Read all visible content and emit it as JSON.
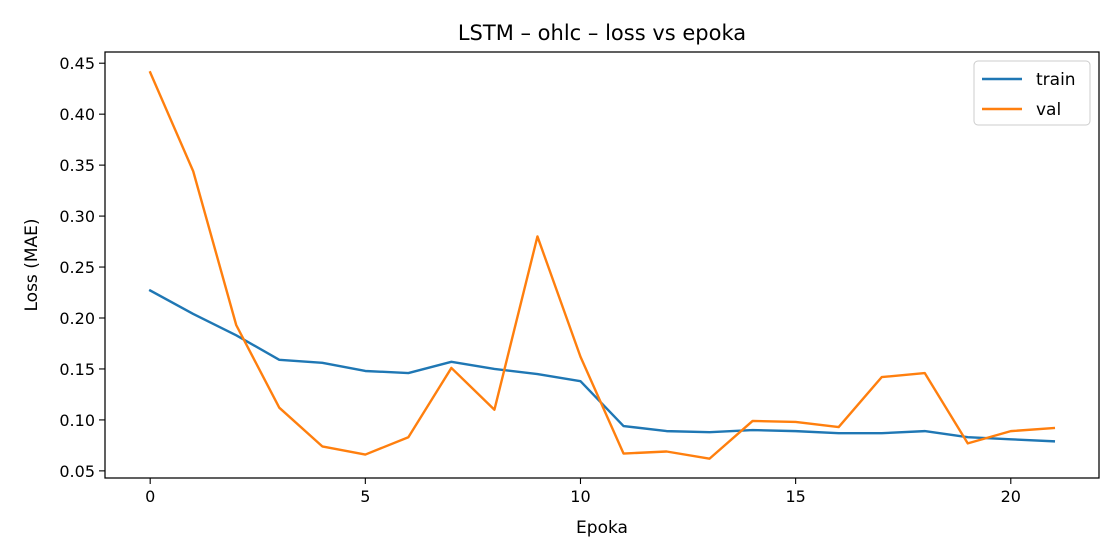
{
  "chart_data": {
    "type": "line",
    "title": "LSTM – ohlc – loss vs epoka",
    "xlabel": "Epoka",
    "ylabel": "Loss (MAE)",
    "x": [
      0,
      1,
      2,
      3,
      4,
      5,
      6,
      7,
      8,
      9,
      10,
      11,
      12,
      13,
      14,
      15,
      16,
      17,
      18,
      19,
      20,
      21
    ],
    "xlim": [
      -1.05,
      22.05
    ],
    "ylim": [
      0.043,
      0.461
    ],
    "x_ticks": [
      0,
      5,
      10,
      15,
      20
    ],
    "x_tick_labels": [
      "0",
      "5",
      "10",
      "15",
      "20"
    ],
    "y_ticks": [
      0.05,
      0.1,
      0.15,
      0.2,
      0.25,
      0.3,
      0.35,
      0.4,
      0.45
    ],
    "y_tick_labels": [
      "0.05",
      "0.10",
      "0.15",
      "0.20",
      "0.25",
      "0.30",
      "0.35",
      "0.40",
      "0.45"
    ],
    "grid": false,
    "legend_position": "top-right",
    "series": [
      {
        "name": "train",
        "color": "#1f77b4",
        "values": [
          0.227,
          0.204,
          0.183,
          0.159,
          0.156,
          0.148,
          0.146,
          0.157,
          0.15,
          0.145,
          0.138,
          0.094,
          0.089,
          0.088,
          0.09,
          0.089,
          0.087,
          0.087,
          0.089,
          0.083,
          0.081,
          0.079
        ]
      },
      {
        "name": "val",
        "color": "#ff7f0e",
        "values": [
          0.441,
          0.344,
          0.193,
          0.112,
          0.074,
          0.066,
          0.083,
          0.151,
          0.11,
          0.28,
          0.162,
          0.067,
          0.069,
          0.062,
          0.099,
          0.098,
          0.093,
          0.142,
          0.146,
          0.077,
          0.089,
          0.092
        ]
      }
    ]
  }
}
